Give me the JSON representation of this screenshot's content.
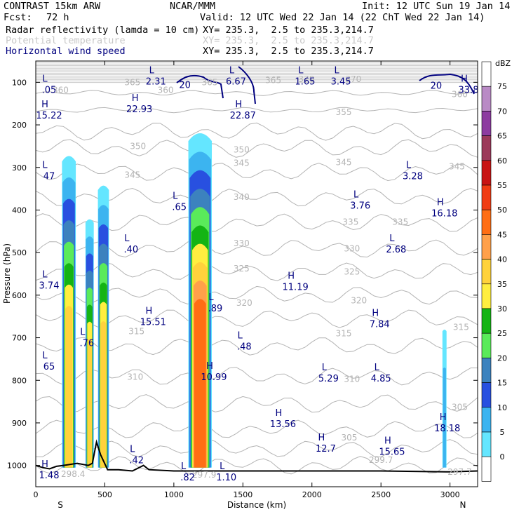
{
  "header": {
    "model": "CONTRAST 15km ARW",
    "org": "NCAR/MMM",
    "init": "Init: 12 UTC Sun 19 Jan 14",
    "fcst_label": "Fcst:",
    "fcst_value": "72 h",
    "valid": "Valid: 12 UTC Wed 22 Jan 14 (22 ChT Wed 22 Jan 14)",
    "fields": [
      {
        "name": "Radar reflectivity (lamda = 10 cm)",
        "xy": "XY= 235.3,  2.5 to 235.3,214.7",
        "style": "normal"
      },
      {
        "name": "Potential temperature",
        "xy": "XY= 235.3,  2.5 to 235.3,214.7",
        "style": "dim"
      },
      {
        "name": "Horizontal wind speed",
        "xy": "XY= 235.3,  2.5 to 235.3,214.7",
        "style": "blue"
      }
    ]
  },
  "chart_data": {
    "type": "cross-section",
    "xlabel": "Distance (km)",
    "ylabel": "Pressure (hPa)",
    "xlim": [
      0,
      3200
    ],
    "ylim": [
      1050,
      50
    ],
    "x_ticks": [
      "0",
      "500",
      "1000",
      "1500",
      "2000",
      "2500",
      "3000"
    ],
    "x_tick_values": [
      0,
      500,
      1000,
      1500,
      2000,
      2500,
      3000
    ],
    "y_ticks": [
      "100",
      "200",
      "300",
      "400",
      "500",
      "600",
      "700",
      "800",
      "900",
      "1000"
    ],
    "y_tick_values": [
      100,
      200,
      300,
      400,
      500,
      600,
      700,
      800,
      900,
      1000
    ],
    "ends": {
      "left": "S",
      "right": "N"
    },
    "colorbar": {
      "unit": "dBZ",
      "levels": [
        "75",
        "70",
        "65",
        "60",
        "55",
        "50",
        "45",
        "40",
        "35",
        "30",
        "25",
        "20",
        "15",
        "10",
        "5",
        "0"
      ],
      "colors": [
        "#ffffff",
        "#b98ac5",
        "#8d3ca0",
        "#9c3a5a",
        "#c81414",
        "#f03c14",
        "#ff6e14",
        "#ffa04a",
        "#ffd23c",
        "#ffee40",
        "#14b414",
        "#5aeb5a",
        "#3c82be",
        "#2850e0",
        "#3cb4f0",
        "#64e6ff",
        "#ffffff"
      ]
    },
    "reflectivity_cells": [
      {
        "x_km": 240,
        "top_hpa": 270,
        "width_km": 100,
        "peak_dbz": 40
      },
      {
        "x_km": 390,
        "top_hpa": 420,
        "width_km": 60,
        "peak_dbz": 40
      },
      {
        "x_km": 490,
        "top_hpa": 340,
        "width_km": 80,
        "peak_dbz": 40
      },
      {
        "x_km": 1190,
        "top_hpa": 215,
        "width_km": 170,
        "peak_dbz": 50
      },
      {
        "x_km": 2960,
        "top_hpa": 680,
        "width_km": 30,
        "peak_dbz": 10
      }
    ],
    "theta_labels": [
      {
        "text": "360",
        "x": 180,
        "p": 118
      },
      {
        "text": "365",
        "x": 700,
        "p": 100
      },
      {
        "text": "360",
        "x": 940,
        "p": 118
      },
      {
        "text": "365",
        "x": 1260,
        "p": 100
      },
      {
        "text": "365",
        "x": 1720,
        "p": 95
      },
      {
        "text": "370",
        "x": 1960,
        "p": 93
      },
      {
        "text": "370",
        "x": 2300,
        "p": 93
      },
      {
        "text": "360",
        "x": 3070,
        "p": 128
      },
      {
        "text": "355",
        "x": 2230,
        "p": 170
      },
      {
        "text": "350",
        "x": 740,
        "p": 250
      },
      {
        "text": "350",
        "x": 1490,
        "p": 258
      },
      {
        "text": "345",
        "x": 700,
        "p": 318
      },
      {
        "text": "345",
        "x": 1490,
        "p": 290
      },
      {
        "text": "345",
        "x": 2230,
        "p": 288
      },
      {
        "text": "345",
        "x": 3050,
        "p": 298
      },
      {
        "text": "340",
        "x": 1490,
        "p": 370
      },
      {
        "text": "335",
        "x": 2280,
        "p": 428
      },
      {
        "text": "335",
        "x": 2640,
        "p": 428
      },
      {
        "text": "330",
        "x": 1490,
        "p": 478
      },
      {
        "text": "330",
        "x": 2290,
        "p": 491
      },
      {
        "text": "325",
        "x": 1490,
        "p": 538
      },
      {
        "text": "325",
        "x": 2290,
        "p": 545
      },
      {
        "text": "320",
        "x": 1510,
        "p": 618
      },
      {
        "text": "320",
        "x": 2340,
        "p": 613
      },
      {
        "text": "315",
        "x": 730,
        "p": 685
      },
      {
        "text": "315",
        "x": 2230,
        "p": 690
      },
      {
        "text": "315",
        "x": 3080,
        "p": 675
      },
      {
        "text": "310",
        "x": 720,
        "p": 792
      },
      {
        "text": "310",
        "x": 2290,
        "p": 797
      },
      {
        "text": "305",
        "x": 3070,
        "p": 863
      },
      {
        "text": "305",
        "x": 2270,
        "p": 935
      },
      {
        "text": "299.7",
        "x": 2500,
        "p": 987
      },
      {
        "text": "298.4",
        "x": 270,
        "p": 1020
      },
      {
        "text": "297.9",
        "x": 1220,
        "p": 1022
      },
      {
        "text": "297.7",
        "x": 3070,
        "p": 1015
      }
    ],
    "wind_extrema": [
      {
        "kind": "L",
        "value": "2.31",
        "x": 870,
        "p": 95
      },
      {
        "kind": "L",
        "value": "6.67",
        "x": 1450,
        "p": 95
      },
      {
        "kind": "L",
        "value": "1.65",
        "x": 1950,
        "p": 95
      },
      {
        "kind": "L",
        "value": "3.45",
        "x": 2210,
        "p": 95
      },
      {
        "kind": "L",
        "value": ".05",
        "x": 30,
        "p": 115
      },
      {
        "kind": "H",
        "value": "33.8",
        "x": 3150,
        "p": 115
      },
      {
        "kind": "H",
        "value": "15.22",
        "x": 70,
        "p": 175
      },
      {
        "kind": "H",
        "value": "22.93",
        "x": 750,
        "p": 160
      },
      {
        "kind": "H",
        "value": "22.87",
        "x": 1500,
        "p": 175
      },
      {
        "kind": "L",
        "value": "47",
        "x": 30,
        "p": 318
      },
      {
        "kind": "L",
        "value": "3.28",
        "x": 2730,
        "p": 318
      },
      {
        "kind": "L",
        "value": ".65",
        "x": 1040,
        "p": 390
      },
      {
        "kind": "L",
        "value": "3.76",
        "x": 2350,
        "p": 387
      },
      {
        "kind": "H",
        "value": "16.18",
        "x": 2960,
        "p": 405
      },
      {
        "kind": "L",
        "value": ".40",
        "x": 690,
        "p": 490
      },
      {
        "kind": "L",
        "value": "2.68",
        "x": 2610,
        "p": 490
      },
      {
        "kind": "L",
        "value": "3.74",
        "x": 50,
        "p": 575
      },
      {
        "kind": "H",
        "value": "11.19",
        "x": 1880,
        "p": 578
      },
      {
        "kind": "L",
        "value": ".89",
        "x": 1300,
        "p": 628
      },
      {
        "kind": "H",
        "value": "15.51",
        "x": 850,
        "p": 660
      },
      {
        "kind": "H",
        "value": "7.84",
        "x": 2490,
        "p": 665
      },
      {
        "kind": "L",
        "value": ".76",
        "x": 370,
        "p": 710
      },
      {
        "kind": "L",
        "value": ".48",
        "x": 1510,
        "p": 718
      },
      {
        "kind": "L",
        "value": "65",
        "x": 30,
        "p": 765
      },
      {
        "kind": "H",
        "value": "10.99",
        "x": 1290,
        "p": 790
      },
      {
        "kind": "L",
        "value": "5.29",
        "x": 2120,
        "p": 793
      },
      {
        "kind": "L",
        "value": "4.85",
        "x": 2500,
        "p": 793
      },
      {
        "kind": "H",
        "value": "13.56",
        "x": 1790,
        "p": 900
      },
      {
        "kind": "H",
        "value": "18.18",
        "x": 2980,
        "p": 910
      },
      {
        "kind": "H",
        "value": "12.7",
        "x": 2100,
        "p": 958
      },
      {
        "kind": "H",
        "value": "15.65",
        "x": 2580,
        "p": 965
      },
      {
        "kind": "L",
        "value": ".42",
        "x": 730,
        "p": 985
      },
      {
        "kind": "H",
        "value": "1.48",
        "x": 60,
        "p": 1020
      },
      {
        "kind": "L",
        "value": ".82",
        "x": 1100,
        "p": 1025
      },
      {
        "kind": "L",
        "value": "1.10",
        "x": 1380,
        "p": 1025
      }
    ],
    "wind_contour_labels": [
      {
        "text": "20",
        "x": 1080,
        "p": 105
      },
      {
        "text": "20",
        "x": 2900,
        "p": 107
      }
    ],
    "terrain_profile": [
      [
        0,
        1000
      ],
      [
        50,
        1005
      ],
      [
        100,
        1008
      ],
      [
        150,
        1002
      ],
      [
        200,
        1000
      ],
      [
        300,
        995
      ],
      [
        380,
        1000
      ],
      [
        410,
        995
      ],
      [
        440,
        945
      ],
      [
        470,
        975
      ],
      [
        520,
        1010
      ],
      [
        600,
        1010
      ],
      [
        700,
        1013
      ],
      [
        780,
        1000
      ],
      [
        820,
        1010
      ],
      [
        1000,
        1013
      ],
      [
        1500,
        1013
      ],
      [
        2000,
        1013
      ],
      [
        2500,
        1013
      ],
      [
        3000,
        1015
      ],
      [
        3200,
        1013
      ]
    ]
  }
}
